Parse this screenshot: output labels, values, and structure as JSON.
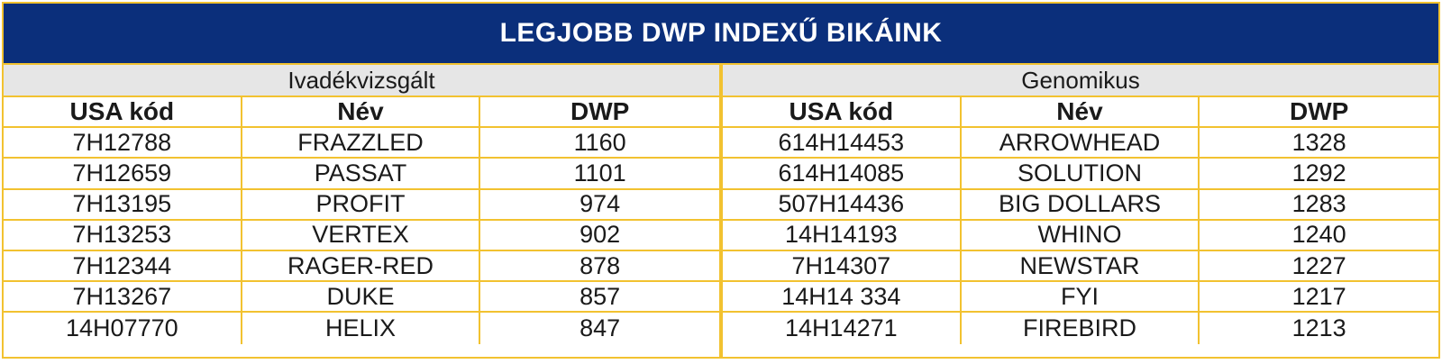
{
  "title": "LEGJOBB DWP INDEXŰ BIKÁINK",
  "colors": {
    "title_bg": "#0b2f7b",
    "border": "#f2c230",
    "section_bg": "#e6e6e6"
  },
  "sections": [
    {
      "name": "Ivadékvizsgált",
      "headers": [
        "USA kód",
        "Név",
        "DWP"
      ],
      "rows": [
        [
          "7H12788",
          "FRAZZLED",
          "1160"
        ],
        [
          "7H12659",
          "PASSAT",
          "1101"
        ],
        [
          "7H13195",
          "PROFIT",
          "974"
        ],
        [
          "7H13253",
          "VERTEX",
          "902"
        ],
        [
          "7H12344",
          "RAGER-RED",
          "878"
        ],
        [
          "7H13267",
          "DUKE",
          "857"
        ],
        [
          "14H07770",
          "HELIX",
          "847"
        ]
      ]
    },
    {
      "name": "Genomikus",
      "headers": [
        "USA kód",
        "Név",
        "DWP"
      ],
      "rows": [
        [
          "614H14453",
          "ARROWHEAD",
          "1328"
        ],
        [
          "614H14085",
          "SOLUTION",
          "1292"
        ],
        [
          "507H14436",
          "BIG DOLLARS",
          "1283"
        ],
        [
          "14H14193",
          "WHINO",
          "1240"
        ],
        [
          "7H14307",
          "NEWSTAR",
          "1227"
        ],
        [
          "14H14 334",
          "FYI",
          "1217"
        ],
        [
          "14H14271",
          "FIREBIRD",
          "1213"
        ]
      ]
    }
  ]
}
